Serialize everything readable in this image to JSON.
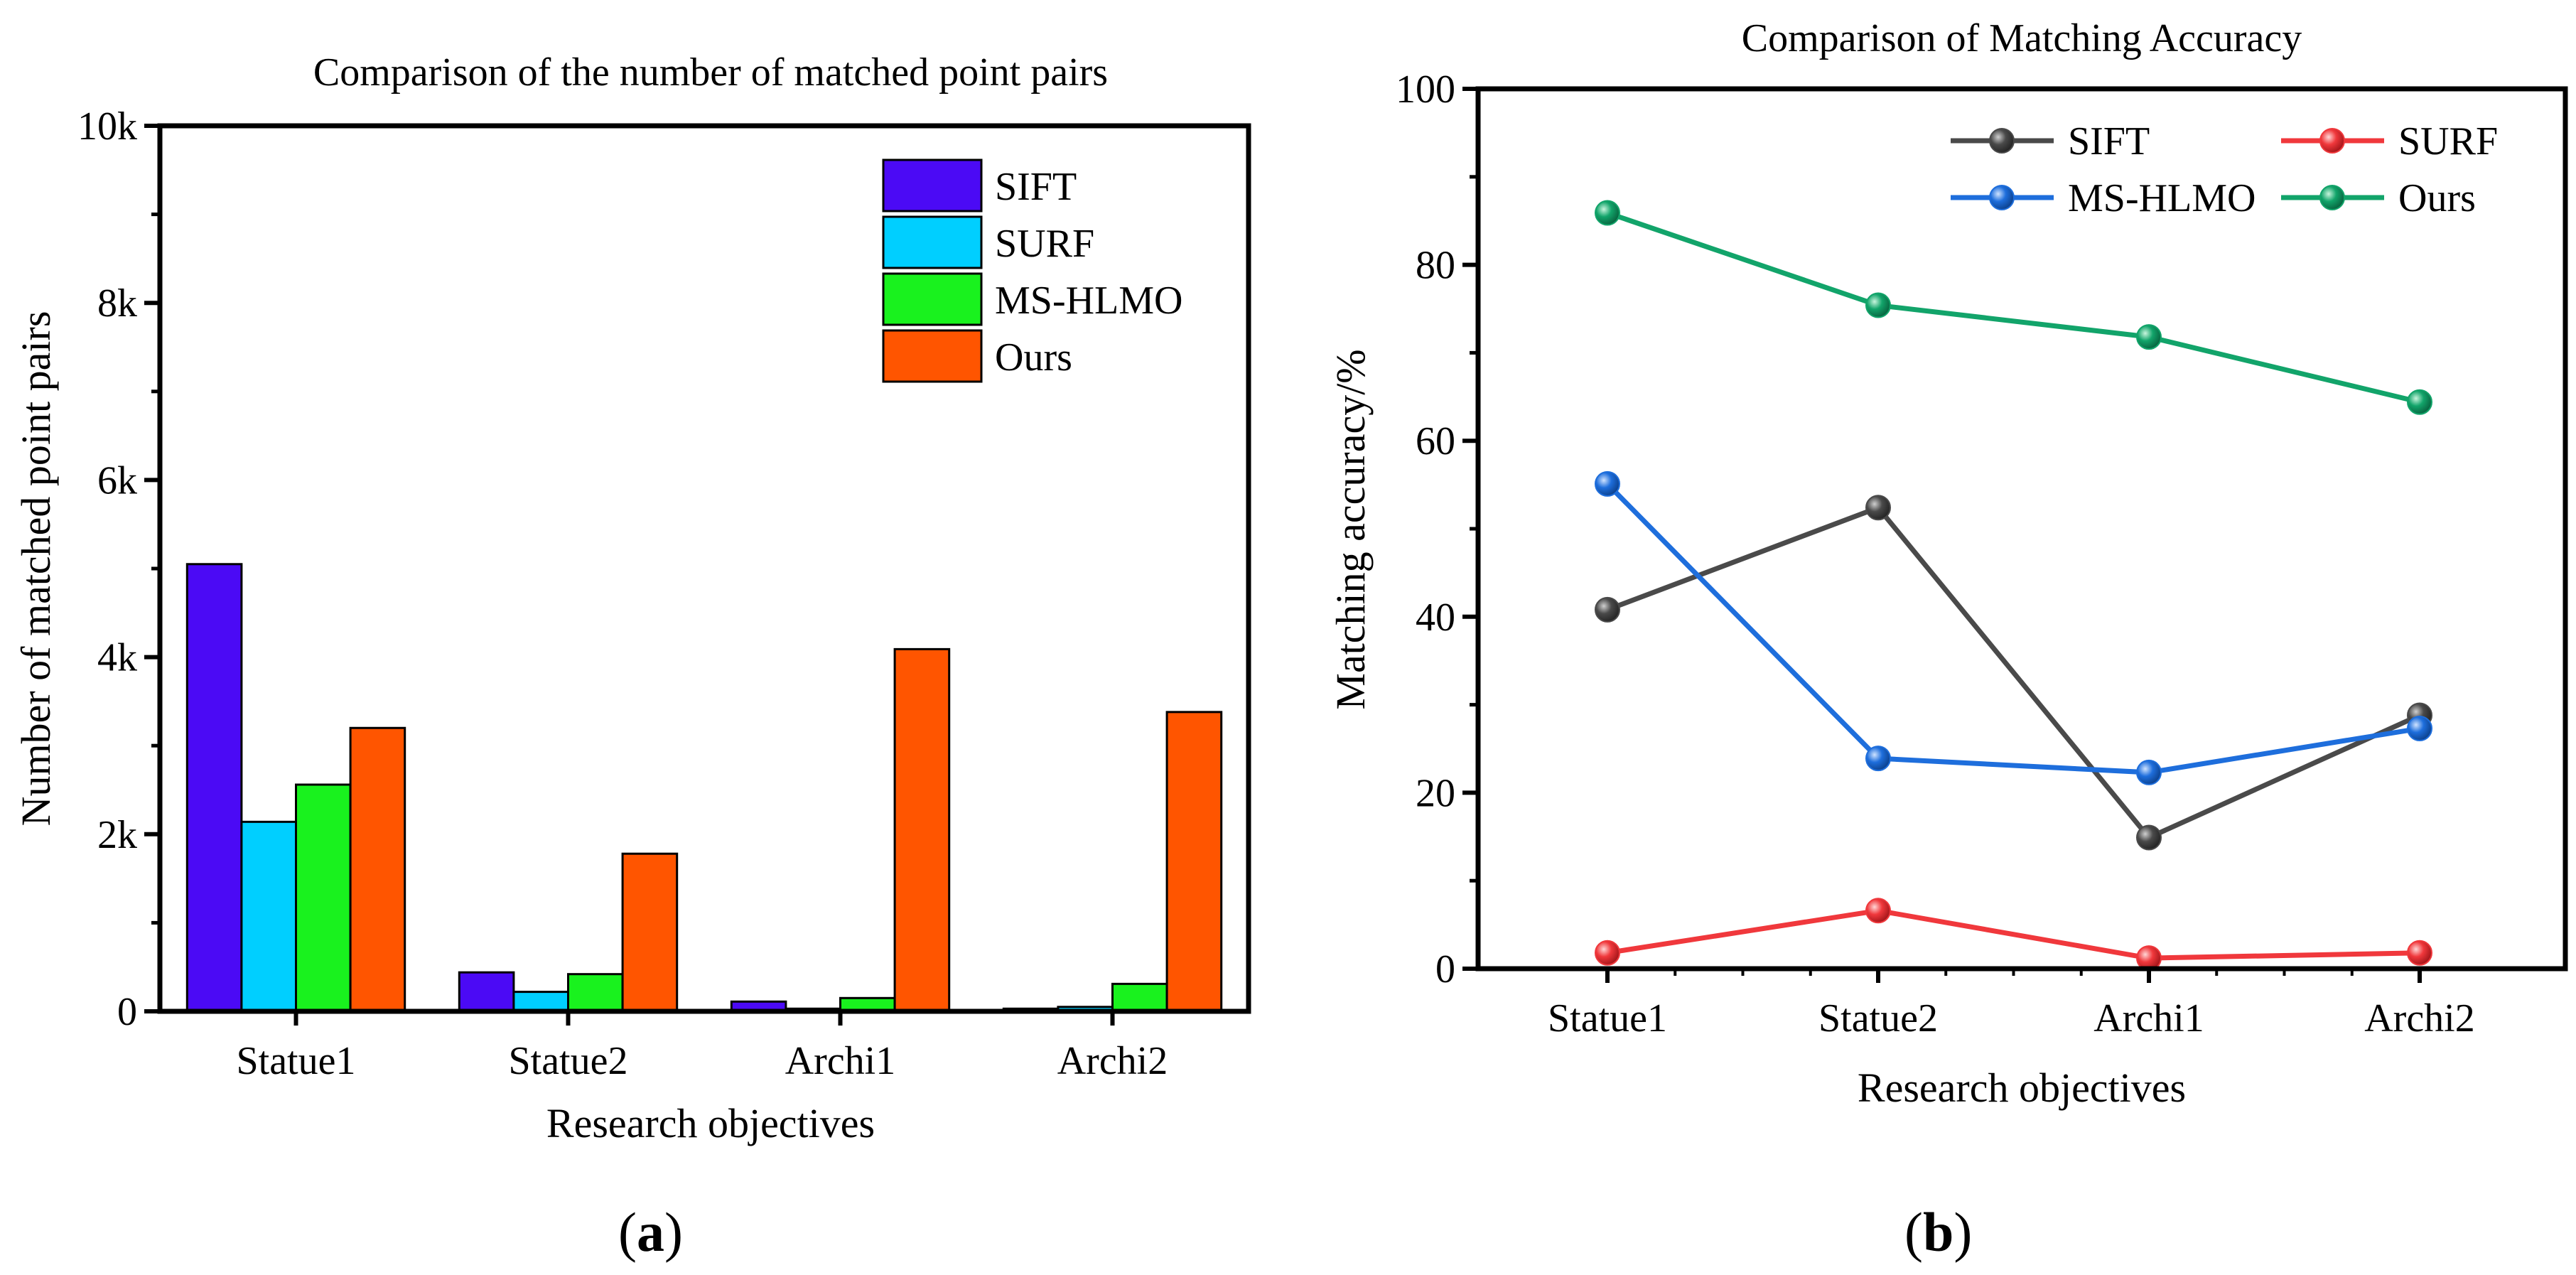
{
  "chart_data": [
    {
      "type": "bar",
      "title": "Comparison of the number of matched point pairs",
      "xlabel": "Research objectives",
      "ylabel": "Number of matched point pairs",
      "categories": [
        "Statue1",
        "Statue2",
        "Archi1",
        "Archi2"
      ],
      "ylim": [
        0,
        10000
      ],
      "yticks": [
        0,
        2000,
        4000,
        6000,
        8000,
        10000
      ],
      "ytick_labels": [
        "0",
        "2k",
        "4k",
        "6k",
        "8k",
        "10k"
      ],
      "legend_position": "top-right",
      "series": [
        {
          "name": "SIFT",
          "color": "#4B0AF5",
          "values": [
            5050,
            440,
            110,
            30
          ]
        },
        {
          "name": "SURF",
          "color": "#00CFFF",
          "values": [
            2140,
            220,
            30,
            50
          ]
        },
        {
          "name": "MS-HLMO",
          "color": "#19F21E",
          "values": [
            2560,
            420,
            150,
            310
          ]
        },
        {
          "name": "Ours",
          "color": "#FF5500",
          "values": [
            3200,
            1780,
            4090,
            3380
          ]
        }
      ],
      "panel_label": {
        "open": "(",
        "letter": "a",
        "close": ")"
      }
    },
    {
      "type": "line",
      "title": "Comparison of Matching Accuracy",
      "xlabel": "Research objectives",
      "ylabel": "Matching accuracy/%",
      "categories": [
        "Statue1",
        "Statue2",
        "Archi1",
        "Archi2"
      ],
      "ylim": [
        0,
        100
      ],
      "yticks": [
        0,
        20,
        40,
        60,
        80,
        100
      ],
      "ytick_labels": [
        "0",
        "20",
        "40",
        "60",
        "80",
        "100"
      ],
      "legend_position": "top",
      "series": [
        {
          "name": "SIFT",
          "color": "#4A4A4A",
          "values": [
            40.8,
            52.4,
            14.9,
            28.8
          ]
        },
        {
          "name": "SURF",
          "color": "#F0383C",
          "values": [
            1.8,
            6.6,
            1.2,
            1.8
          ]
        },
        {
          "name": "MS-HLMO",
          "color": "#1E6EDC",
          "values": [
            55.1,
            23.9,
            22.3,
            27.3
          ]
        },
        {
          "name": "Ours",
          "color": "#12A46A",
          "values": [
            85.9,
            75.4,
            71.8,
            64.4
          ]
        }
      ],
      "panel_label": {
        "open": "(",
        "letter": "b",
        "close": ")"
      }
    }
  ]
}
